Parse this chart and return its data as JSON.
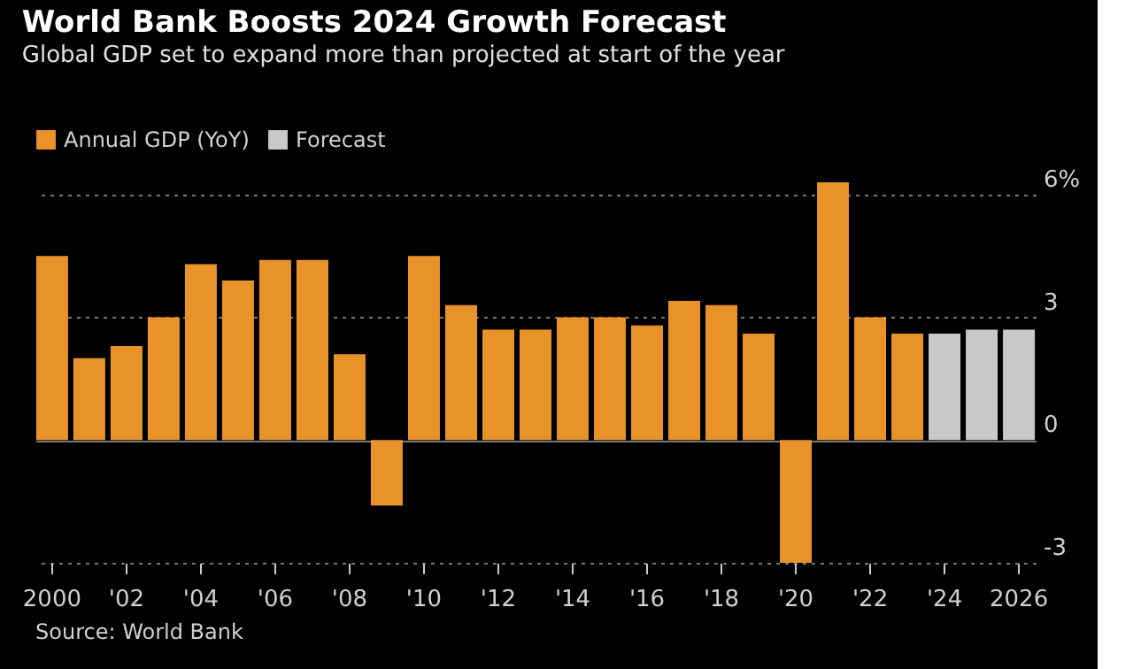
{
  "chart_data": {
    "type": "bar",
    "title": "World Bank Boosts 2024 Growth Forecast",
    "subtitle": "Global GDP set to expand more than projected at start of the year",
    "categories": [
      "2000",
      null,
      "'02",
      null,
      "'04",
      null,
      "'06",
      null,
      "'08",
      null,
      "'10",
      null,
      "'12",
      null,
      "'14",
      null,
      "'16",
      null,
      "'18",
      null,
      "'20",
      null,
      "'22",
      null,
      "'24",
      null,
      "2026"
    ],
    "series": [
      {
        "name": "Annual GDP (YoY)",
        "color": "#e8922a",
        "values": [
          4.5,
          2.0,
          2.3,
          3.0,
          4.3,
          3.9,
          4.4,
          4.4,
          2.1,
          -1.6,
          4.5,
          3.3,
          2.7,
          2.7,
          3.0,
          3.0,
          2.8,
          3.4,
          3.3,
          2.6,
          -3.0,
          6.3,
          3.0,
          2.6,
          null,
          null,
          null
        ]
      },
      {
        "name": "Forecast",
        "color": "#c8c8c8",
        "values": [
          null,
          null,
          null,
          null,
          null,
          null,
          null,
          null,
          null,
          null,
          null,
          null,
          null,
          null,
          null,
          null,
          null,
          null,
          null,
          null,
          null,
          null,
          null,
          null,
          2.6,
          2.7,
          2.7
        ]
      }
    ],
    "ylim": [
      -3,
      6.3
    ],
    "yticks": [
      {
        "value": 6,
        "label": "6%"
      },
      3,
      0,
      -3
    ],
    "grid": "y",
    "legend": "top left",
    "annotations": [
      "Source: World Bank"
    ]
  }
}
